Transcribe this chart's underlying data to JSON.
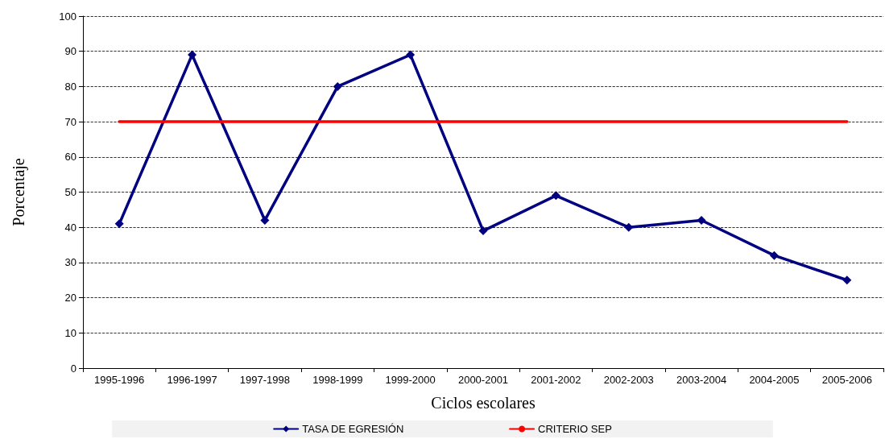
{
  "chart_data": {
    "type": "line",
    "xlabel": "Ciclos escolares",
    "ylabel": "Porcentaje",
    "categories": [
      "1995-1996",
      "1996-1997",
      "1997-1998",
      "1998-1999",
      "1999-2000",
      "2000-2001",
      "2001-2002",
      "2002-2003",
      "2003-2004",
      "2004-2005",
      "2005-2006"
    ],
    "series": [
      {
        "name": "TASA DE EGRESIÓN",
        "color": "#000080",
        "marker": "diamond",
        "values": [
          41,
          89,
          42,
          80,
          89,
          39,
          49,
          40,
          42,
          32,
          25
        ]
      },
      {
        "name": "CRITERIO SEP",
        "color": "#ff0000",
        "marker": "none",
        "values": [
          70,
          70,
          70,
          70,
          70,
          70,
          70,
          70,
          70,
          70,
          70
        ]
      }
    ],
    "ylim": [
      0,
      100
    ],
    "yticks": [
      0,
      10,
      20,
      30,
      40,
      50,
      60,
      70,
      80,
      90,
      100
    ],
    "grid": "y",
    "legend": "bottom"
  }
}
